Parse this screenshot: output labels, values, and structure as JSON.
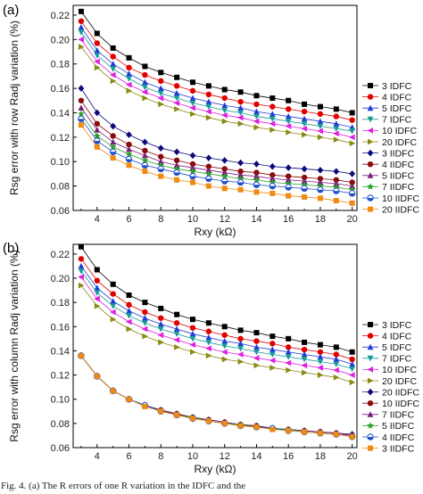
{
  "caption": "Fig. 4.   (a) The R  errors of one R     variation in the IDFC and the",
  "chart_data": [
    {
      "type": "line",
      "panel_label": "(a)",
      "xlabel": "Rxy (kΩ)",
      "ylabel": "Rsg error with row Radj variation (%)",
      "xlim": [
        2.5,
        20.3
      ],
      "ylim": [
        0.06,
        0.228
      ],
      "xticks": [
        4,
        6,
        8,
        10,
        12,
        14,
        16,
        18,
        20
      ],
      "yticks": [
        0.06,
        0.08,
        0.1,
        0.12,
        0.14,
        0.16,
        0.18,
        0.2,
        0.22
      ],
      "x": [
        3,
        4,
        5,
        6,
        7,
        8,
        9,
        10,
        11,
        12,
        13,
        14,
        15,
        16,
        17,
        18,
        19,
        20
      ],
      "legend_position": "right",
      "series": [
        {
          "name": "3  IDFC",
          "color": "#000000",
          "marker": "square",
          "values": [
            0.223,
            0.205,
            0.193,
            0.185,
            0.178,
            0.173,
            0.169,
            0.165,
            0.162,
            0.159,
            0.157,
            0.154,
            0.152,
            0.15,
            0.147,
            0.145,
            0.143,
            0.14
          ]
        },
        {
          "name": "4  IDFC",
          "color": "#e00000",
          "marker": "circle",
          "values": [
            0.215,
            0.197,
            0.186,
            0.177,
            0.171,
            0.166,
            0.162,
            0.158,
            0.155,
            0.152,
            0.149,
            0.147,
            0.145,
            0.143,
            0.141,
            0.139,
            0.137,
            0.134
          ]
        },
        {
          "name": "5  IDFC",
          "color": "#1f3bd6",
          "marker": "triangle-up",
          "values": [
            0.21,
            0.191,
            0.18,
            0.172,
            0.165,
            0.16,
            0.156,
            0.152,
            0.149,
            0.146,
            0.144,
            0.141,
            0.139,
            0.137,
            0.135,
            0.133,
            0.131,
            0.128
          ]
        },
        {
          "name": "7  IDFC",
          "color": "#1a9a9a",
          "marker": "triangle-down",
          "values": [
            0.206,
            0.187,
            0.176,
            0.168,
            0.161,
            0.156,
            0.152,
            0.148,
            0.145,
            0.142,
            0.14,
            0.137,
            0.135,
            0.133,
            0.131,
            0.129,
            0.127,
            0.125
          ]
        },
        {
          "name": "10  IDFC",
          "color": "#e020e0",
          "marker": "triangle-left",
          "values": [
            0.2,
            0.182,
            0.171,
            0.163,
            0.157,
            0.152,
            0.148,
            0.144,
            0.141,
            0.138,
            0.136,
            0.133,
            0.131,
            0.129,
            0.127,
            0.125,
            0.123,
            0.12
          ]
        },
        {
          "name": "20  IDFC",
          "color": "#8a8a12",
          "marker": "triangle-right",
          "values": [
            0.194,
            0.177,
            0.166,
            0.158,
            0.152,
            0.147,
            0.143,
            0.139,
            0.136,
            0.133,
            0.131,
            0.128,
            0.126,
            0.124,
            0.122,
            0.12,
            0.118,
            0.115
          ]
        },
        {
          "name": "3  IIDFC",
          "color": "#0a0a7a",
          "marker": "diamond",
          "values": [
            0.16,
            0.14,
            0.129,
            0.122,
            0.116,
            0.111,
            0.108,
            0.105,
            0.103,
            0.101,
            0.099,
            0.098,
            0.096,
            0.095,
            0.094,
            0.093,
            0.092,
            0.09
          ]
        },
        {
          "name": "4  IIDFC",
          "color": "#8b0a0a",
          "marker": "circle",
          "values": [
            0.15,
            0.131,
            0.121,
            0.114,
            0.109,
            0.104,
            0.101,
            0.098,
            0.096,
            0.094,
            0.092,
            0.091,
            0.089,
            0.088,
            0.087,
            0.086,
            0.085,
            0.083
          ]
        },
        {
          "name": "5  IIDFC",
          "color": "#7a1a7a",
          "marker": "triangle-up",
          "values": [
            0.144,
            0.126,
            0.116,
            0.11,
            0.105,
            0.1,
            0.097,
            0.095,
            0.093,
            0.091,
            0.089,
            0.088,
            0.086,
            0.085,
            0.084,
            0.083,
            0.082,
            0.08
          ]
        },
        {
          "name": "7  IIDFC",
          "color": "#2aa02a",
          "marker": "star",
          "values": [
            0.139,
            0.121,
            0.112,
            0.106,
            0.101,
            0.097,
            0.094,
            0.092,
            0.09,
            0.088,
            0.086,
            0.085,
            0.083,
            0.082,
            0.081,
            0.08,
            0.079,
            0.077
          ]
        },
        {
          "name": "10  IIDFC",
          "color": "#1f4fd0",
          "marker": "circle-half",
          "values": [
            0.135,
            0.117,
            0.108,
            0.102,
            0.097,
            0.094,
            0.091,
            0.088,
            0.086,
            0.084,
            0.083,
            0.081,
            0.08,
            0.079,
            0.078,
            0.077,
            0.076,
            0.074
          ]
        },
        {
          "name": "20  IIDFC",
          "color": "#f08a10",
          "marker": "square",
          "values": [
            0.13,
            0.112,
            0.103,
            0.097,
            0.092,
            0.088,
            0.085,
            0.083,
            0.08,
            0.078,
            0.077,
            0.075,
            0.074,
            0.072,
            0.071,
            0.07,
            0.068,
            0.066
          ]
        }
      ]
    },
    {
      "type": "line",
      "panel_label": "(b)",
      "xlabel": "Rxy (kΩ)",
      "ylabel": "Rsg error with column Radj variation (%)",
      "xlim": [
        2.5,
        20.3
      ],
      "ylim": [
        0.06,
        0.228
      ],
      "xticks": [
        4,
        6,
        8,
        10,
        12,
        14,
        16,
        18,
        20
      ],
      "yticks": [
        0.06,
        0.08,
        0.1,
        0.12,
        0.14,
        0.16,
        0.18,
        0.2,
        0.22
      ],
      "x": [
        3,
        4,
        5,
        6,
        7,
        8,
        9,
        10,
        11,
        12,
        13,
        14,
        15,
        16,
        17,
        18,
        19,
        20
      ],
      "legend_position": "right",
      "series": [
        {
          "name": "3  IDFC",
          "color": "#000000",
          "marker": "square",
          "values": [
            0.226,
            0.207,
            0.195,
            0.186,
            0.18,
            0.175,
            0.17,
            0.166,
            0.163,
            0.16,
            0.157,
            0.155,
            0.152,
            0.15,
            0.147,
            0.145,
            0.143,
            0.139
          ]
        },
        {
          "name": "4  IDFC",
          "color": "#e00000",
          "marker": "circle",
          "values": [
            0.216,
            0.198,
            0.187,
            0.178,
            0.172,
            0.167,
            0.163,
            0.159,
            0.156,
            0.153,
            0.15,
            0.148,
            0.146,
            0.143,
            0.141,
            0.139,
            0.137,
            0.133
          ]
        },
        {
          "name": "5  IDFC",
          "color": "#1f3bd6",
          "marker": "triangle-up",
          "values": [
            0.21,
            0.192,
            0.181,
            0.173,
            0.167,
            0.162,
            0.158,
            0.154,
            0.151,
            0.148,
            0.146,
            0.143,
            0.141,
            0.139,
            0.137,
            0.135,
            0.133,
            0.129
          ]
        },
        {
          "name": "7  IDFC",
          "color": "#1a9a9a",
          "marker": "triangle-down",
          "values": [
            0.206,
            0.188,
            0.177,
            0.169,
            0.163,
            0.158,
            0.154,
            0.15,
            0.147,
            0.144,
            0.142,
            0.139,
            0.137,
            0.135,
            0.133,
            0.131,
            0.129,
            0.125
          ]
        },
        {
          "name": "10  IDFC",
          "color": "#e020e0",
          "marker": "triangle-left",
          "values": [
            0.201,
            0.183,
            0.172,
            0.164,
            0.158,
            0.153,
            0.149,
            0.145,
            0.142,
            0.139,
            0.137,
            0.134,
            0.132,
            0.13,
            0.128,
            0.126,
            0.124,
            0.12
          ]
        },
        {
          "name": "20  IDFC",
          "color": "#8a8a12",
          "marker": "triangle-right",
          "values": [
            0.194,
            0.177,
            0.166,
            0.158,
            0.152,
            0.147,
            0.143,
            0.139,
            0.136,
            0.133,
            0.131,
            0.128,
            0.126,
            0.124,
            0.122,
            0.12,
            0.118,
            0.114
          ]
        },
        {
          "name": "20  IIDFC",
          "color": "#0a0a7a",
          "marker": "diamond",
          "values": [
            0.136,
            0.119,
            0.107,
            0.1,
            0.095,
            0.091,
            0.088,
            0.085,
            0.083,
            0.081,
            0.079,
            0.078,
            0.076,
            0.075,
            0.074,
            0.073,
            0.072,
            0.071
          ]
        },
        {
          "name": "10  IIDFC",
          "color": "#8b0a0a",
          "marker": "circle",
          "values": [
            0.136,
            0.119,
            0.107,
            0.1,
            0.095,
            0.091,
            0.088,
            0.085,
            0.083,
            0.081,
            0.079,
            0.078,
            0.076,
            0.075,
            0.074,
            0.073,
            0.072,
            0.07
          ]
        },
        {
          "name": "7  IIDFC",
          "color": "#7a1a7a",
          "marker": "triangle-up",
          "values": [
            0.136,
            0.119,
            0.107,
            0.1,
            0.095,
            0.091,
            0.087,
            0.085,
            0.083,
            0.081,
            0.079,
            0.077,
            0.076,
            0.075,
            0.074,
            0.073,
            0.072,
            0.07
          ]
        },
        {
          "name": "5  IIDFC",
          "color": "#2aa02a",
          "marker": "star",
          "values": [
            0.136,
            0.119,
            0.107,
            0.1,
            0.095,
            0.09,
            0.087,
            0.085,
            0.082,
            0.08,
            0.079,
            0.077,
            0.076,
            0.075,
            0.073,
            0.072,
            0.071,
            0.069
          ]
        },
        {
          "name": "4  IIDFC",
          "color": "#1f4fd0",
          "marker": "circle-half",
          "values": [
            0.136,
            0.119,
            0.107,
            0.1,
            0.095,
            0.09,
            0.087,
            0.084,
            0.082,
            0.08,
            0.078,
            0.077,
            0.076,
            0.074,
            0.073,
            0.072,
            0.071,
            0.069
          ]
        },
        {
          "name": "3  IIDFC",
          "color": "#f08a10",
          "marker": "square",
          "values": [
            0.136,
            0.119,
            0.107,
            0.1,
            0.094,
            0.09,
            0.087,
            0.084,
            0.082,
            0.08,
            0.078,
            0.077,
            0.075,
            0.074,
            0.073,
            0.072,
            0.071,
            0.069
          ]
        }
      ]
    }
  ]
}
